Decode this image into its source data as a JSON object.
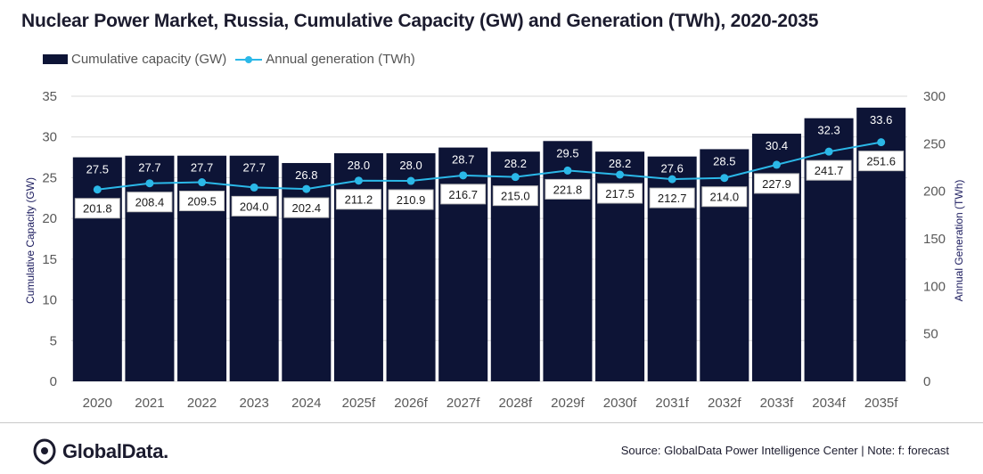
{
  "title": "Nuclear Power Market, Russia, Cumulative Capacity (GW) and Generation (TWh), 2020-2035",
  "legend": {
    "capacity_label": "Cumulative capacity (GW)",
    "generation_label": "Annual generation (TWh)"
  },
  "colors": {
    "bar": "#0d1436",
    "line": "#2bb8e8"
  },
  "footer": {
    "logo_text": "GlobalData.",
    "source": "Source: GlobalData Power Intelligence Center | Note: f: forecast"
  },
  "chart_data": {
    "type": "bar",
    "title": "Nuclear Power Market, Russia, Cumulative Capacity (GW) and Generation (TWh), 2020-2035",
    "categories": [
      "2020",
      "2021",
      "2022",
      "2023",
      "2024",
      "2025f",
      "2026f",
      "2027f",
      "2028f",
      "2029f",
      "2030f",
      "2031f",
      "2032f",
      "2033f",
      "2034f",
      "2035f"
    ],
    "series": [
      {
        "name": "Cumulative capacity (GW)",
        "type": "bar",
        "axis": "left",
        "values": [
          27.5,
          27.7,
          27.7,
          27.7,
          26.8,
          28.0,
          28.0,
          28.7,
          28.2,
          29.5,
          28.2,
          27.6,
          28.5,
          30.4,
          32.3,
          33.6
        ],
        "labels": [
          "27.5",
          "27.7",
          "27.7",
          "27.7",
          "26.8",
          "28.0",
          "28.0",
          "28.7",
          "28.2",
          "29.5",
          "28.2",
          "27.6",
          "28.5",
          "30.4",
          "32.3",
          "33.6"
        ]
      },
      {
        "name": "Annual generation (TWh)",
        "type": "line",
        "axis": "right",
        "values": [
          201.8,
          208.4,
          209.5,
          204.0,
          202.4,
          211.2,
          210.9,
          216.7,
          215.0,
          221.8,
          217.5,
          212.7,
          214.0,
          227.9,
          241.7,
          251.6
        ],
        "labels": [
          "201.8",
          "208.4",
          "209.5",
          "204.0",
          "202.4",
          "211.2",
          "210.9",
          "216.7",
          "215.0",
          "221.8",
          "217.5",
          "212.7",
          "214.0",
          "227.9",
          "241.7",
          "251.6"
        ]
      }
    ],
    "ylabel": "Cumulative Capacity (GW)",
    "y2label": "Annual Generation (TWh)",
    "ylim": [
      0,
      35
    ],
    "y2lim": [
      0,
      300
    ],
    "yticks": [
      "0",
      "5",
      "10",
      "15",
      "20",
      "25",
      "30",
      "35"
    ],
    "y2ticks": [
      "0",
      "50",
      "100",
      "150",
      "200",
      "250",
      "300"
    ],
    "grid": true,
    "legend_position": "top-left"
  }
}
